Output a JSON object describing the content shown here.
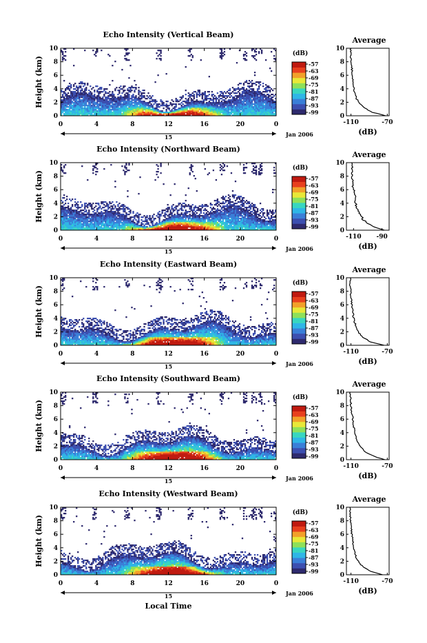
{
  "common": {
    "ylabel": "Height (km)",
    "y_ticks": [
      "0",
      "2",
      "4",
      "6",
      "8",
      "10"
    ],
    "x_ticks": [
      "0",
      "4",
      "8",
      "12",
      "16",
      "20",
      "0"
    ],
    "day_label": "15",
    "month_label": "Jan 2006",
    "colorbar_unit": "(dB)",
    "colorbar_ticks": [
      "-57",
      "-63",
      "-69",
      "-75",
      "-81",
      "-87",
      "-93",
      "-99"
    ],
    "avg_title": "Average",
    "avg_xlabel": "(dB)",
    "xlabel_bottom": "Local Time"
  },
  "colors": {
    "colormap": [
      "#2e2a6e",
      "#3c4fb0",
      "#3a7fd8",
      "#2fb6e6",
      "#38d6c0",
      "#8ee05a",
      "#e8e838",
      "#f2a02a",
      "#e8401e",
      "#c01a10"
    ]
  },
  "chart_data": [
    {
      "type": "heatmap",
      "title": "Echo Intensity (Vertical Beam)",
      "beam": "vertical",
      "xlabel": "",
      "ylabel": "Height (km)",
      "x_range_hours": [
        0,
        24
      ],
      "y_range_km": [
        0,
        10
      ],
      "value_range_dB": [
        -99,
        -57
      ],
      "profile": {
        "title": "Average",
        "xlabel": "(dB)",
        "x_ticks": [
          "-110",
          "-70"
        ],
        "x_range": [
          -115,
          -68
        ],
        "height_km": [
          0,
          0.5,
          1,
          1.5,
          2,
          2.5,
          3,
          3.5,
          4,
          5,
          6,
          7,
          8,
          9,
          10
        ],
        "dB": [
          -72,
          -86,
          -93,
          -98,
          -101,
          -104,
          -105,
          -106,
          -107,
          -108,
          -108.5,
          -109,
          -110,
          -110.5,
          -110
        ]
      }
    },
    {
      "type": "heatmap",
      "title": "Echo Intensity (Northward Beam)",
      "beam": "north",
      "xlabel": "",
      "ylabel": "Height (km)",
      "x_range_hours": [
        0,
        24
      ],
      "y_range_km": [
        0,
        10
      ],
      "value_range_dB": [
        -99,
        -57
      ],
      "profile": {
        "title": "Average",
        "xlabel": "(dB)",
        "x_ticks": [
          "-110",
          "-90"
        ],
        "x_range": [
          -115,
          -85
        ],
        "height_km": [
          0,
          0.5,
          1,
          1.5,
          2,
          2.5,
          3,
          3.5,
          4,
          5,
          6,
          7,
          8,
          9,
          10
        ],
        "dB": [
          -88,
          -96,
          -100,
          -103,
          -104.5,
          -106,
          -107,
          -108,
          -108.5,
          -109,
          -110,
          -110.5,
          -111,
          -111,
          -111
        ]
      }
    },
    {
      "type": "heatmap",
      "title": "Echo Intensity (Eastward Beam)",
      "beam": "east",
      "xlabel": "",
      "ylabel": "Height (km)",
      "x_range_hours": [
        0,
        24
      ],
      "y_range_km": [
        0,
        10
      ],
      "value_range_dB": [
        -99,
        -57
      ],
      "profile": {
        "title": "Average",
        "xlabel": "(dB)",
        "x_ticks": [
          "-110",
          "-70"
        ],
        "x_range": [
          -115,
          -68
        ],
        "height_km": [
          0,
          0.5,
          1,
          1.5,
          2,
          2.5,
          3,
          3.5,
          4,
          5,
          6,
          7,
          8,
          9,
          10
        ],
        "dB": [
          -74,
          -88,
          -95,
          -99,
          -102,
          -104,
          -105,
          -106,
          -107,
          -108,
          -109,
          -110,
          -110.5,
          -111,
          -111
        ]
      }
    },
    {
      "type": "heatmap",
      "title": "Echo Intensity (Southward Beam)",
      "beam": "south",
      "xlabel": "",
      "ylabel": "Height (km)",
      "x_range_hours": [
        0,
        24
      ],
      "y_range_km": [
        0,
        10
      ],
      "value_range_dB": [
        -99,
        -57
      ],
      "profile": {
        "title": "Average",
        "xlabel": "(dB)",
        "x_ticks": [
          "-110",
          "-70"
        ],
        "x_range": [
          -115,
          -68
        ],
        "height_km": [
          0,
          0.5,
          1,
          1.5,
          2,
          2.5,
          3,
          3.5,
          4,
          5,
          6,
          7,
          8,
          9,
          10
        ],
        "dB": [
          -73,
          -85,
          -92,
          -97,
          -100,
          -102,
          -104,
          -105,
          -106,
          -107,
          -108,
          -109,
          -110,
          -110.5,
          -111
        ]
      }
    },
    {
      "type": "heatmap",
      "title": "Echo Intensity (Westward Beam)",
      "beam": "west",
      "xlabel": "Local Time",
      "ylabel": "Height (km)",
      "x_range_hours": [
        0,
        24
      ],
      "y_range_km": [
        0,
        10
      ],
      "value_range_dB": [
        -99,
        -57
      ],
      "profile": {
        "title": "Average",
        "xlabel": "(dB)",
        "x_ticks": [
          "-110",
          "-70"
        ],
        "x_range": [
          -115,
          -68
        ],
        "height_km": [
          0,
          0.5,
          1,
          1.5,
          2,
          2.5,
          3,
          3.5,
          4,
          5,
          6,
          7,
          8,
          9,
          10
        ],
        "dB": [
          -75,
          -88,
          -95,
          -99,
          -102,
          -104,
          -105,
          -106,
          -107,
          -108,
          -109,
          -110,
          -110.5,
          -111,
          -111
        ]
      }
    }
  ]
}
